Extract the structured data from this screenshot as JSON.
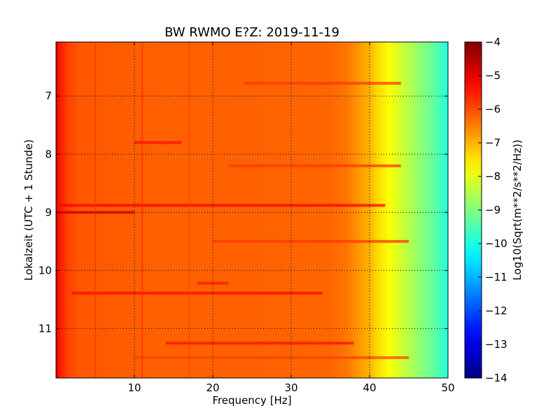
{
  "chart_data": {
    "type": "heatmap",
    "title": "BW RWMO E?Z: 2019-11-19",
    "xlabel": "Frequency [Hz]",
    "ylabel": "Lokalzeit (UTC + 1 Stunde)",
    "xlim": [
      0,
      50
    ],
    "ylim": [
      6.07,
      11.85
    ],
    "y_inverted": true,
    "x_ticks": [
      10,
      20,
      30,
      40,
      50
    ],
    "y_ticks": [
      7,
      8,
      9,
      10,
      11
    ],
    "grid": true,
    "colormap": "jet",
    "colorbar": {
      "label": "Log10(Sqrt(m**2/s**2/Hz))",
      "range": [
        -14,
        -4
      ],
      "ticks": [
        -4,
        -5,
        -6,
        -7,
        -8,
        -9,
        -10,
        -11,
        -12,
        -13,
        -14
      ]
    },
    "frequency_profile": {
      "frequency_hz": [
        0,
        0.5,
        1.5,
        3,
        8,
        15,
        25,
        35,
        37,
        38.5,
        40,
        41,
        42.5,
        44,
        45.5,
        47,
        48.5,
        49.3,
        50
      ],
      "log10_amplitude": [
        -5.0,
        -5.5,
        -5.9,
        -6.1,
        -6.15,
        -6.2,
        -6.2,
        -6.25,
        -6.4,
        -6.7,
        -7.0,
        -7.4,
        -7.8,
        -8.2,
        -8.6,
        -9.0,
        -9.4,
        -9.7,
        -9.9
      ]
    },
    "horizontal_bands": [
      {
        "time": 8.88,
        "f_range": [
          0,
          42
        ],
        "log10_amplitude": -5.2
      },
      {
        "time": 9.0,
        "f_range": [
          0,
          10
        ],
        "log10_amplitude": -4.9
      },
      {
        "time": 10.39,
        "f_range": [
          2,
          34
        ],
        "log10_amplitude": -5.3
      },
      {
        "time": 11.25,
        "f_range": [
          14,
          38
        ],
        "log10_amplitude": -5.4
      },
      {
        "time": 6.78,
        "f_range": [
          24,
          44
        ],
        "log10_amplitude": -5.8
      },
      {
        "time": 8.2,
        "f_range": [
          22,
          44
        ],
        "log10_amplitude": -5.8
      },
      {
        "time": 9.5,
        "f_range": [
          20,
          45
        ],
        "log10_amplitude": -5.8
      },
      {
        "time": 7.8,
        "f_range": [
          10,
          16
        ],
        "log10_amplitude": -5.4
      },
      {
        "time": 10.22,
        "f_range": [
          18,
          22
        ],
        "log10_amplitude": -5.5
      },
      {
        "time": 11.5,
        "f_range": [
          10,
          45
        ],
        "log10_amplitude": -5.9
      }
    ],
    "vertical_lines": [
      {
        "frequency_hz": 5,
        "log10_amplitude": -5.7
      },
      {
        "frequency_hz": 11,
        "log10_amplitude": -5.6
      },
      {
        "frequency_hz": 17,
        "log10_amplitude": -5.8
      }
    ]
  }
}
